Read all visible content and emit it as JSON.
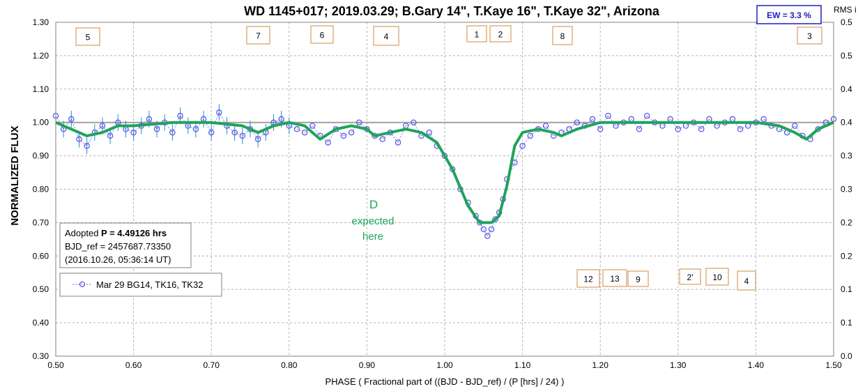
{
  "chart_data": {
    "type": "scatter",
    "title": "WD 1145+017; 2019.03.29; B.Gary 14\", T.Kaye 16\", T.Kaye 32\",  Arizona",
    "xlabel": "PHASE ( Fractional part of ((BJD - BJD_ref) / (P [hrs] / 24) )",
    "ylabel": "NORMALIZED FLUX",
    "y2label": "RMS i",
    "xlim": [
      0.5,
      1.5
    ],
    "ylim": [
      0.3,
      1.3
    ],
    "x_ticks": [
      "0.50",
      "0.60",
      "0.70",
      "0.80",
      "0.90",
      "1.00",
      "1.10",
      "1.20",
      "1.30",
      "1.40",
      "1.50"
    ],
    "y_ticks": [
      "0.30",
      "0.40",
      "0.50",
      "0.60",
      "0.70",
      "0.80",
      "0.90",
      "1.00",
      "1.10",
      "1.20",
      "1.30"
    ],
    "y2_ticks": [
      "0.0",
      "0.1",
      "0.1",
      "0.2",
      "0.2",
      "0.3",
      "0.3",
      "0.4",
      "0.4",
      "0.5",
      "0.5"
    ],
    "grid": true,
    "reference_line": 1.0,
    "colors": {
      "data": "#5a5ae6",
      "errorbars": "#1e8fd0",
      "model": "#1fa35a",
      "refline": "#a0a0a0",
      "box_border": "#d08a40"
    },
    "series": [
      {
        "name": "Mar 29 BG14, TK16, TK32",
        "marker": "open-circle",
        "values_x": [
          0.5,
          0.51,
          0.52,
          0.53,
          0.54,
          0.55,
          0.56,
          0.57,
          0.58,
          0.59,
          0.6,
          0.61,
          0.62,
          0.63,
          0.64,
          0.65,
          0.66,
          0.67,
          0.68,
          0.69,
          0.7,
          0.71,
          0.72,
          0.73,
          0.74,
          0.75,
          0.76,
          0.77,
          0.78,
          0.79,
          0.8,
          0.81,
          0.82,
          0.83,
          0.84,
          0.85,
          0.86,
          0.87,
          0.88,
          0.89,
          0.9,
          0.91,
          0.92,
          0.93,
          0.94,
          0.95,
          0.96,
          0.97,
          0.98,
          0.99,
          1.0,
          1.01,
          1.02,
          1.03,
          1.04,
          1.045,
          1.05,
          1.055,
          1.06,
          1.065,
          1.07,
          1.075,
          1.08,
          1.09,
          1.1,
          1.11,
          1.12,
          1.13,
          1.14,
          1.15,
          1.16,
          1.17,
          1.18,
          1.19,
          1.2,
          1.21,
          1.22,
          1.23,
          1.24,
          1.25,
          1.26,
          1.27,
          1.28,
          1.29,
          1.3,
          1.31,
          1.32,
          1.33,
          1.34,
          1.35,
          1.36,
          1.37,
          1.38,
          1.39,
          1.4,
          1.41,
          1.42,
          1.43,
          1.44,
          1.45,
          1.46,
          1.47,
          1.48,
          1.49,
          1.5
        ],
        "values_y": [
          1.02,
          0.98,
          1.01,
          0.95,
          0.93,
          0.97,
          0.99,
          0.96,
          1.0,
          0.98,
          0.97,
          0.99,
          1.01,
          0.98,
          1.0,
          0.97,
          1.02,
          0.99,
          0.98,
          1.01,
          0.97,
          1.03,
          0.99,
          0.97,
          0.96,
          0.98,
          0.95,
          0.97,
          1.0,
          1.01,
          0.99,
          0.98,
          0.97,
          0.99,
          0.96,
          0.94,
          0.98,
          0.96,
          0.97,
          1.0,
          0.98,
          0.96,
          0.95,
          0.97,
          0.94,
          0.99,
          1.0,
          0.96,
          0.97,
          0.93,
          0.9,
          0.86,
          0.8,
          0.76,
          0.72,
          0.7,
          0.68,
          0.66,
          0.68,
          0.71,
          0.73,
          0.77,
          0.83,
          0.88,
          0.93,
          0.96,
          0.98,
          0.99,
          0.96,
          0.97,
          0.98,
          1.0,
          0.99,
          1.01,
          0.98,
          1.02,
          0.99,
          1.0,
          1.01,
          0.98,
          1.02,
          1.0,
          0.99,
          1.01,
          0.98,
          0.99,
          1.0,
          0.98,
          1.01,
          0.99,
          1.0,
          1.01,
          0.98,
          0.99,
          1.0,
          1.01,
          0.99,
          0.98,
          0.97,
          0.99,
          0.96,
          0.95,
          0.98,
          1.0,
          1.01
        ]
      },
      {
        "name": "model",
        "values_x": [
          0.5,
          0.52,
          0.54,
          0.56,
          0.58,
          0.6,
          0.65,
          0.7,
          0.74,
          0.76,
          0.78,
          0.8,
          0.82,
          0.84,
          0.86,
          0.88,
          0.9,
          0.91,
          0.93,
          0.95,
          0.97,
          0.99,
          1.01,
          1.03,
          1.045,
          1.06,
          1.07,
          1.08,
          1.09,
          1.1,
          1.12,
          1.14,
          1.15,
          1.17,
          1.2,
          1.25,
          1.3,
          1.35,
          1.4,
          1.43,
          1.45,
          1.465,
          1.48,
          1.5
        ],
        "values_y": [
          1.0,
          0.98,
          0.96,
          0.97,
          0.99,
          0.99,
          1.0,
          1.0,
          0.99,
          0.97,
          0.99,
          1.0,
          0.99,
          0.95,
          0.98,
          0.99,
          0.98,
          0.96,
          0.97,
          0.98,
          0.97,
          0.94,
          0.86,
          0.75,
          0.7,
          0.7,
          0.72,
          0.81,
          0.93,
          0.97,
          0.98,
          0.97,
          0.96,
          0.98,
          1.0,
          1.0,
          1.0,
          1.0,
          1.0,
          0.99,
          0.97,
          0.95,
          0.98,
          1.0
        ]
      }
    ],
    "annotations": [
      {
        "label": "D",
        "x": 0.91,
        "y": 0.74
      },
      {
        "label": "expected",
        "x": 0.91,
        "y": 0.71
      },
      {
        "label": "here",
        "x": 0.91,
        "y": 0.68
      }
    ],
    "fragment_labels": [
      "5",
      "7",
      "6",
      "4",
      "1",
      "2",
      "8",
      "3",
      "12",
      "13",
      "9",
      "2'",
      "10",
      "4"
    ]
  },
  "info_box": {
    "adopted_prefix": "Adopted ",
    "adopted_period": "P = 4.49126 hrs",
    "bjd_ref": "BJD_ref = 2457687.73350",
    "utc": "(2016.10.26, 05:36:14 UT)"
  },
  "legend": {
    "label": "Mar 29 BG14, TK16, TK32"
  },
  "ew_box": {
    "text": "EW =  3.3 %"
  },
  "annotation_text": {
    "d": "D",
    "expected": "expected",
    "here": "here"
  }
}
